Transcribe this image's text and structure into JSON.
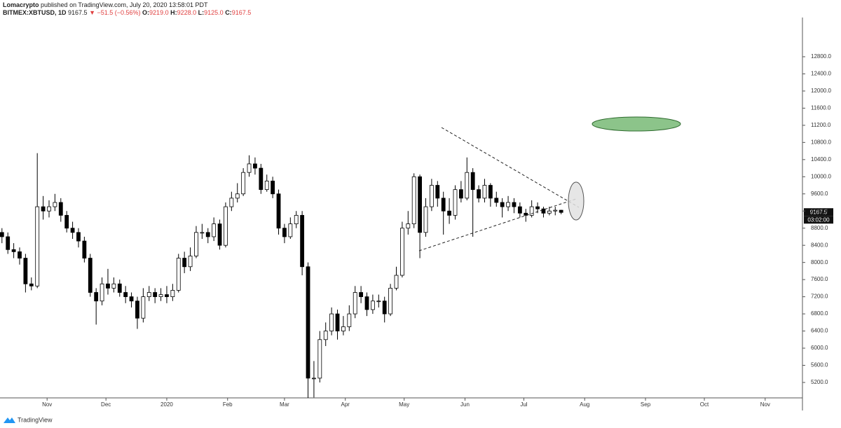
{
  "header": {
    "author": "Lomacrypto",
    "published": "published on TradingView.com, July 20, 2020 13:58:01 PDT",
    "symbol": "BITMEX:XBTUSD, 1D",
    "last": "9167.5",
    "change": "▼ −51.5 (−0.56%)",
    "o_label": "O:",
    "o_value": "9219.0",
    "h_label": "H:",
    "h_value": "9228.0",
    "l_label": "L:",
    "l_value": "9125.0",
    "c_label": "C:",
    "c_value": "9167.5",
    "countdown": "03:02:00"
  },
  "footer": {
    "brand": "TradingView"
  },
  "chart_data": {
    "type": "candlestick",
    "x": [
      "2019-10-09",
      "2019-10-12",
      "2019-10-15",
      "2019-10-18",
      "2019-10-21",
      "2019-10-24",
      "2019-10-27",
      "2019-10-30",
      "2019-11-02",
      "2019-11-05",
      "2019-11-08",
      "2019-11-11",
      "2019-11-14",
      "2019-11-17",
      "2019-11-20",
      "2019-11-23",
      "2019-11-26",
      "2019-11-29",
      "2019-12-02",
      "2019-12-05",
      "2019-12-08",
      "2019-12-11",
      "2019-12-14",
      "2019-12-17",
      "2019-12-20",
      "2019-12-23",
      "2019-12-26",
      "2019-12-29",
      "2020-01-01",
      "2020-01-04",
      "2020-01-07",
      "2020-01-10",
      "2020-01-13",
      "2020-01-16",
      "2020-01-19",
      "2020-01-22",
      "2020-01-25",
      "2020-01-28",
      "2020-01-31",
      "2020-02-03",
      "2020-02-06",
      "2020-02-09",
      "2020-02-12",
      "2020-02-15",
      "2020-02-18",
      "2020-02-21",
      "2020-02-24",
      "2020-02-27",
      "2020-03-01",
      "2020-03-04",
      "2020-03-07",
      "2020-03-10",
      "2020-03-13",
      "2020-03-16",
      "2020-03-19",
      "2020-03-22",
      "2020-03-25",
      "2020-03-28",
      "2020-03-31",
      "2020-04-03",
      "2020-04-06",
      "2020-04-09",
      "2020-04-12",
      "2020-04-15",
      "2020-04-18",
      "2020-04-21",
      "2020-04-24",
      "2020-04-27",
      "2020-04-30",
      "2020-05-03",
      "2020-05-06",
      "2020-05-09",
      "2020-05-12",
      "2020-05-15",
      "2020-05-18",
      "2020-05-21",
      "2020-05-24",
      "2020-05-27",
      "2020-05-30",
      "2020-06-02",
      "2020-06-05",
      "2020-06-08",
      "2020-06-11",
      "2020-06-14",
      "2020-06-17",
      "2020-06-20",
      "2020-06-23",
      "2020-06-26",
      "2020-06-29",
      "2020-07-02",
      "2020-07-05",
      "2020-07-08",
      "2020-07-11",
      "2020-07-14",
      "2020-07-17",
      "2020-07-20"
    ],
    "open": [
      8700,
      8600,
      8300,
      8250,
      8100,
      7500,
      7450,
      9300,
      9200,
      9300,
      9400,
      9100,
      8800,
      8700,
      8500,
      8100,
      7300,
      7100,
      7500,
      7400,
      7500,
      7300,
      7200,
      7100,
      6700,
      7200,
      7300,
      7200,
      7250,
      7200,
      7350,
      8100,
      7900,
      8150,
      8700,
      8700,
      8600,
      8900,
      8400,
      9300,
      9500,
      9600,
      10100,
      10300,
      10200,
      9700,
      9900,
      9600,
      8800,
      8600,
      8900,
      9100,
      7900,
      5300,
      5300,
      6200,
      6400,
      6800,
      6400,
      6500,
      6800,
      7300,
      7200,
      6900,
      7100,
      7100,
      6800,
      7400,
      7700,
      8800,
      8900,
      10000,
      8700,
      9300,
      9800,
      9500,
      9200,
      9100,
      9700,
      9500,
      10100,
      9700,
      9500,
      9800,
      9500,
      9400,
      9300,
      9400,
      9300,
      9150,
      9100,
      9300,
      9250,
      9150,
      9200,
      9219
    ],
    "high": [
      8800,
      8700,
      8450,
      8350,
      8200,
      7650,
      10550,
      9550,
      9450,
      9600,
      9500,
      9200,
      8950,
      8800,
      8600,
      8200,
      7400,
      7650,
      7850,
      7650,
      7600,
      7450,
      7300,
      7200,
      7400,
      7450,
      7400,
      7400,
      7450,
      7500,
      8200,
      8250,
      8350,
      8850,
      8900,
      8800,
      9050,
      9000,
      9400,
      9650,
      9850,
      10200,
      10500,
      10450,
      10300,
      10050,
      10000,
      9700,
      8900,
      9050,
      9200,
      9200,
      8000,
      5700,
      6400,
      6600,
      6950,
      6900,
      6750,
      7000,
      7450,
      7450,
      7300,
      7250,
      7250,
      7200,
      7500,
      7900,
      8950,
      9200,
      10080,
      10050,
      9500,
      9950,
      9900,
      9650,
      9500,
      9800,
      9900,
      10450,
      10200,
      9800,
      9950,
      9850,
      9650,
      9500,
      9550,
      9500,
      9400,
      9250,
      9450,
      9400,
      9300,
      9300,
      9300,
      9228
    ],
    "low": [
      8450,
      8200,
      8100,
      7950,
      7300,
      7350,
      7400,
      9000,
      9050,
      9200,
      8950,
      8700,
      8550,
      8350,
      8000,
      7200,
      6550,
      7000,
      7250,
      7300,
      7200,
      7050,
      6950,
      6450,
      6600,
      7100,
      7050,
      7100,
      7050,
      7100,
      7300,
      7750,
      7800,
      8100,
      8550,
      8450,
      8500,
      8300,
      8350,
      9200,
      9400,
      9550,
      10000,
      10050,
      9600,
      9650,
      9500,
      8650,
      8450,
      8550,
      8800,
      7700,
      4700,
      4850,
      5200,
      6050,
      6300,
      6200,
      6300,
      6400,
      6700,
      7050,
      6750,
      6800,
      6950,
      6600,
      6750,
      7350,
      7650,
      8650,
      8800,
      8100,
      8600,
      9200,
      9300,
      8650,
      8900,
      9000,
      9400,
      9450,
      8600,
      9400,
      9400,
      9300,
      9300,
      9050,
      9200,
      9150,
      9050,
      8950,
      9050,
      9150,
      9050,
      9100,
      9100,
      9125
    ],
    "close": [
      8600,
      8300,
      8250,
      8100,
      7500,
      7450,
      9300,
      9200,
      9300,
      9400,
      9100,
      8800,
      8700,
      8500,
      8100,
      7300,
      7100,
      7500,
      7400,
      7500,
      7300,
      7200,
      7100,
      6700,
      7200,
      7300,
      7200,
      7250,
      7200,
      7350,
      8100,
      7900,
      8150,
      8700,
      8700,
      8600,
      8900,
      8400,
      9300,
      9500,
      9600,
      10100,
      10300,
      10200,
      9700,
      9900,
      9600,
      8800,
      8600,
      8900,
      9100,
      7900,
      5300,
      5300,
      6200,
      6400,
      6800,
      6400,
      6500,
      6800,
      7300,
      7200,
      6900,
      7100,
      7100,
      6800,
      7400,
      7700,
      8800,
      8900,
      10000,
      8700,
      9300,
      9800,
      9500,
      9200,
      9100,
      9700,
      9500,
      10100,
      9700,
      9500,
      9800,
      9500,
      9400,
      9300,
      9400,
      9300,
      9150,
      9100,
      9300,
      9250,
      9150,
      9200,
      9219,
      9167.5
    ],
    "up_color": "#ffffff",
    "down_color": "#000000",
    "wick_color": "#000000",
    "xlim": [
      "2019-10-08",
      "2020-11-20"
    ],
    "xticks": [
      {
        "value": "2019-11-01",
        "label": "Nov"
      },
      {
        "value": "2019-12-01",
        "label": "Dec"
      },
      {
        "value": "2020-01-01",
        "label": "2020"
      },
      {
        "value": "2020-02-01",
        "label": "Feb"
      },
      {
        "value": "2020-03-01",
        "label": "Mar"
      },
      {
        "value": "2020-04-01",
        "label": "Apr"
      },
      {
        "value": "2020-05-01",
        "label": "May"
      },
      {
        "value": "2020-06-01",
        "label": "Jun"
      },
      {
        "value": "2020-07-01",
        "label": "Jul"
      },
      {
        "value": "2020-08-01",
        "label": "Aug"
      },
      {
        "value": "2020-09-01",
        "label": "Sep"
      },
      {
        "value": "2020-10-01",
        "label": "Oct"
      },
      {
        "value": "2020-11-01",
        "label": "Nov"
      }
    ],
    "ylim": [
      4840,
      13715
    ],
    "yticks": [
      {
        "value": 5200,
        "label": "5200.0"
      },
      {
        "value": 5600,
        "label": "5600.0"
      },
      {
        "value": 6000,
        "label": "6000.0"
      },
      {
        "value": 6400,
        "label": "6400.0"
      },
      {
        "value": 6800,
        "label": "6800.0"
      },
      {
        "value": 7200,
        "label": "7200.0"
      },
      {
        "value": 7600,
        "label": "7600.0"
      },
      {
        "value": 8000,
        "label": "8000.0"
      },
      {
        "value": 8400,
        "label": "8400.0"
      },
      {
        "value": 8800,
        "label": "8800.0"
      },
      {
        "value": 9200,
        "label": "9200.0"
      },
      {
        "value": 9600,
        "label": "9600.0"
      },
      {
        "value": 10000,
        "label": "10000.0"
      },
      {
        "value": 10400,
        "label": "10400.0"
      },
      {
        "value": 10800,
        "label": "10800.0"
      },
      {
        "value": 11200,
        "label": "11200.0"
      },
      {
        "value": 11600,
        "label": "11600.0"
      },
      {
        "value": 12000,
        "label": "12000.0"
      },
      {
        "value": 12400,
        "label": "12400.0"
      },
      {
        "value": 12800,
        "label": "12800.0"
      }
    ],
    "grid": false
  }
}
